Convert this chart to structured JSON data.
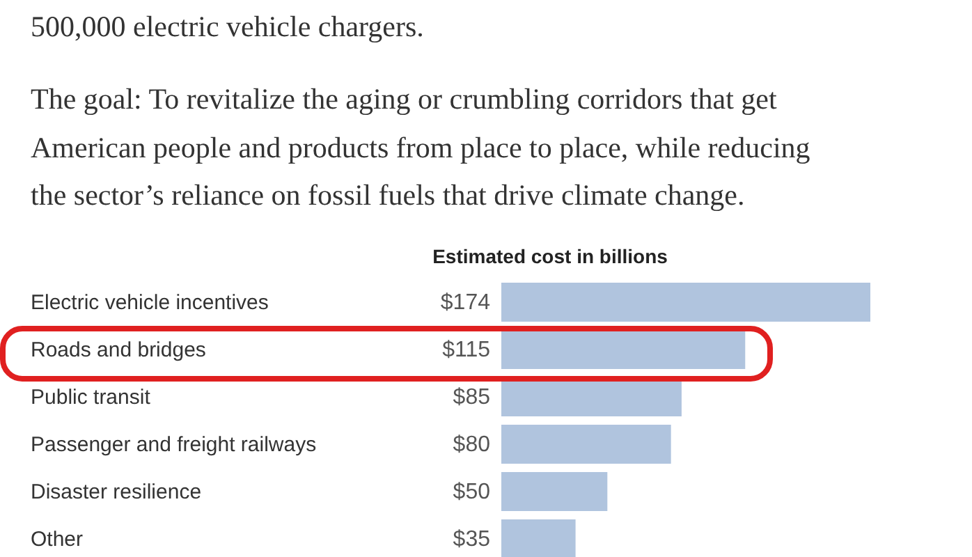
{
  "chart_data": {
    "type": "bar",
    "orientation": "horizontal",
    "title": "Estimated cost in billions",
    "annotations": [
      "500,000 electric vehicle chargers.",
      "The goal: To revitalize the aging or crumbling corridors that get",
      "American people and products from place to place, while reducing",
      "the sector’s reliance on fossil fuels that drive climate change."
    ],
    "categories": [
      "Electric vehicle incentives",
      "Roads and bridges",
      "Public transit",
      "Passenger and freight railways",
      "Disaster resilience",
      "Other"
    ],
    "values": [
      174,
      115,
      85,
      80,
      50,
      35
    ],
    "value_labels": [
      "$174",
      "$115",
      "$85",
      "$80",
      "$50",
      "$35"
    ],
    "color": "#b0c4de"
  }
}
